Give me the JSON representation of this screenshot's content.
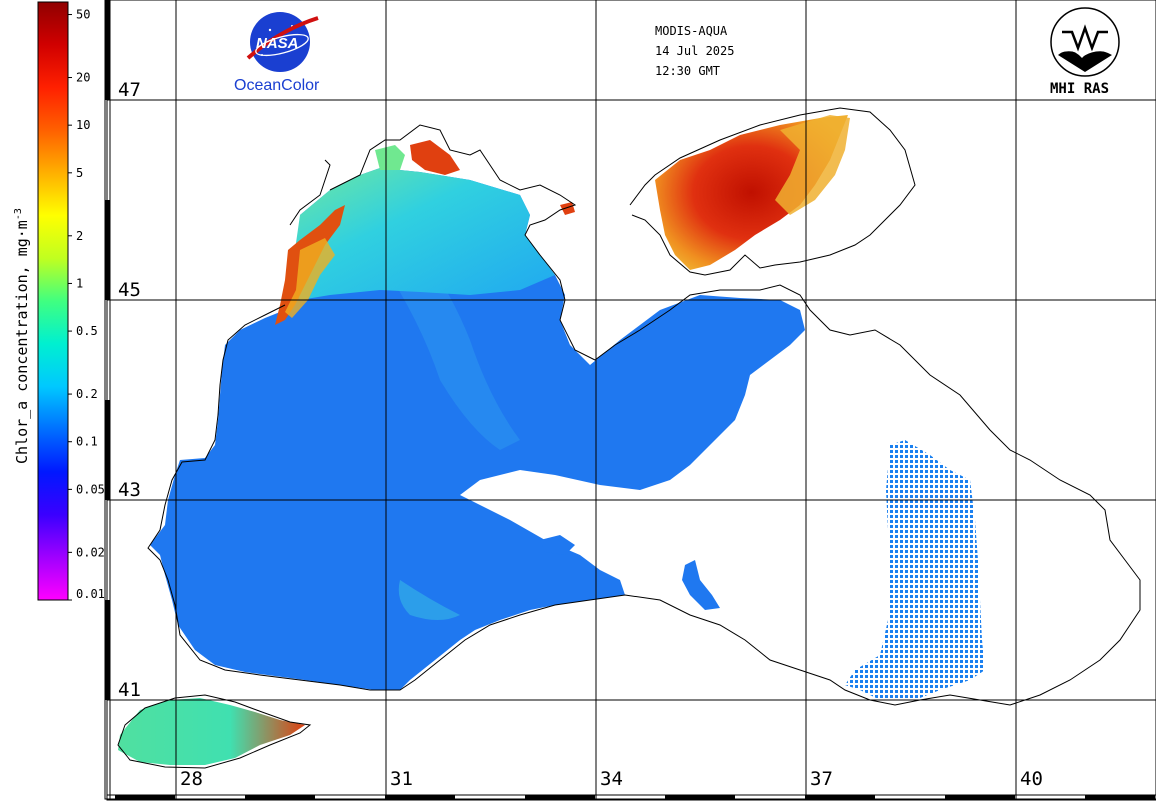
{
  "header": {
    "sensor": "MODIS-AQUA",
    "date": "14 Jul 2025",
    "time": "12:30 GMT"
  },
  "logos": {
    "nasa_word": "NASA",
    "oceancolor": "OceanColor",
    "mhi": "MHI RAS"
  },
  "colorbar": {
    "title": "Chlor_a concentration, mg·m",
    "title_exp": "-3",
    "ticks": [
      "50",
      "20",
      "10",
      "5",
      "2",
      "1",
      "0.5",
      "0.2",
      "0.1",
      "0.05",
      "0.02",
      "0.01"
    ],
    "colors": [
      "#ff00ff",
      "#a000ff",
      "#3a00ff",
      "#0018ff",
      "#0070ff",
      "#00c8ff",
      "#00f0d0",
      "#40ff80",
      "#c0ff20",
      "#ffff00",
      "#ffb000",
      "#ff6000",
      "#ff2000",
      "#d00000",
      "#900000"
    ]
  },
  "grid": {
    "latitudes": [
      "47",
      "45",
      "43",
      "41"
    ],
    "longitudes": [
      "28",
      "31",
      "34",
      "37",
      "40"
    ]
  },
  "palette": {
    "sea_blue": "#1f78f0",
    "sea_light": "#1aa0f0",
    "cyan": "#30d0e8",
    "green": "#60e890",
    "yellow": "#e8e040",
    "orange": "#f07020",
    "red": "#e03010",
    "darkred": "#c01000"
  }
}
